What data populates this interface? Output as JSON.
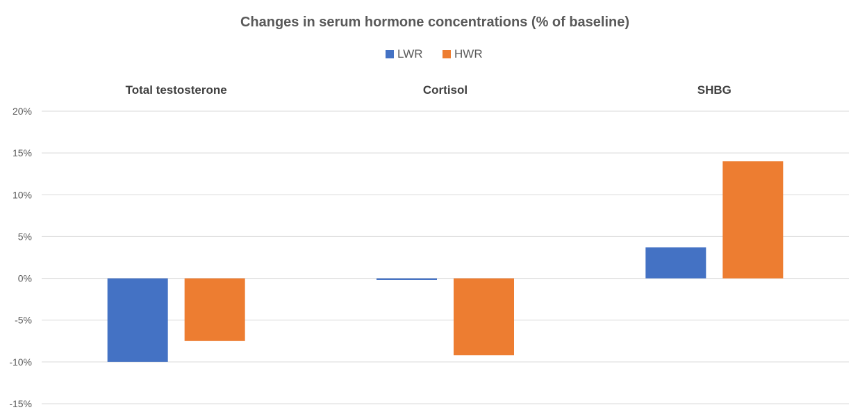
{
  "chart_data": {
    "type": "bar",
    "title": "Changes in serum hormone concentrations (% of baseline)",
    "categories": [
      "Total testosterone",
      "Cortisol",
      "SHBG"
    ],
    "series": [
      {
        "name": "LWR",
        "color": "#4472c4",
        "values": [
          -10.0,
          -0.2,
          3.7
        ]
      },
      {
        "name": "HWR",
        "color": "#ed7d31",
        "values": [
          -7.5,
          -9.2,
          14.0
        ]
      }
    ],
    "xlabel": "",
    "ylabel": "",
    "ylim": [
      -15,
      20
    ],
    "yticks": [
      -15,
      -10,
      -5,
      0,
      5,
      10,
      15,
      20
    ],
    "ytick_labels": [
      "-15%",
      "-10%",
      "-5%",
      "0%",
      "5%",
      "10%",
      "15%",
      "20%"
    ],
    "category_labels_position": "top",
    "legend_position": "top",
    "grid": true
  }
}
